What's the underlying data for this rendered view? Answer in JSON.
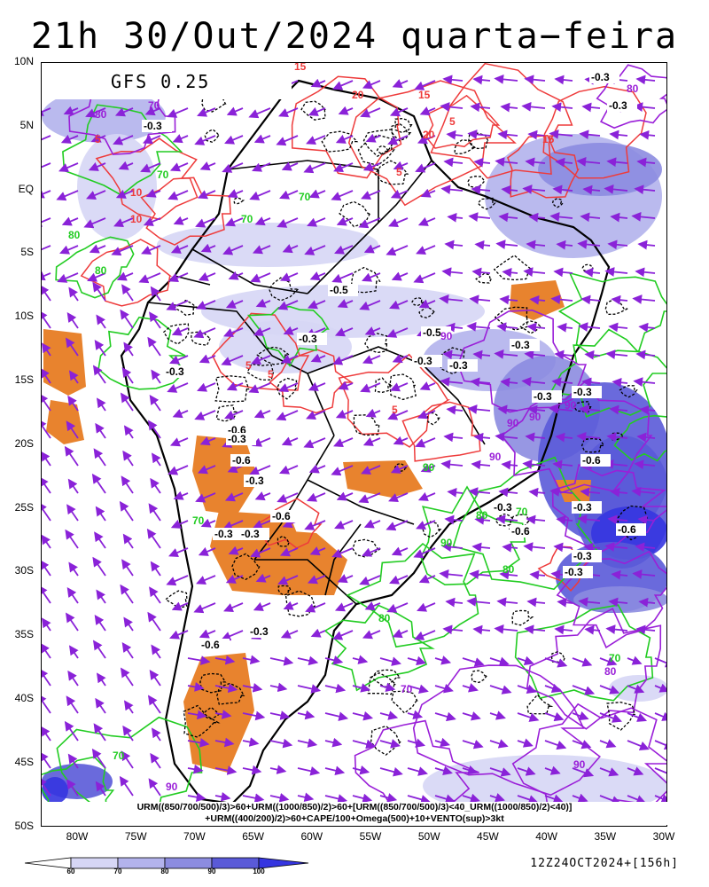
{
  "title": "21h 30/Out/2024 quarta−feira",
  "model": "GFS 0.25",
  "lat_labels": [
    "10N",
    "5N",
    "EQ",
    "5S",
    "10S",
    "15S",
    "20S",
    "25S",
    "30S",
    "35S",
    "40S",
    "45S",
    "50S"
  ],
  "lon_labels": [
    "80W",
    "75W",
    "70W",
    "65W",
    "60W",
    "55W",
    "50W",
    "45W",
    "40W",
    "35W",
    "30W"
  ],
  "legend_lines": [
    "URM((850/700/500)/3)>60+URM((1000/850)/2)>60+[URM((850/700/500)/3)<40_URM((1000/850)/2)<40)]",
    "+URM((400/200)/2)>60+CAPE/100+Omega(500)+10+VENTO(sup)>3kt"
  ],
  "run_info": "12Z24OCT2024+[156h]",
  "colorbar": {
    "labels": [
      "60",
      "70",
      "80",
      "90",
      "100"
    ],
    "colors": [
      "#ffffff",
      "#d6d6f5",
      "#b3b3ec",
      "#8c8ce0",
      "#5a5ad8",
      "#3535e0"
    ]
  },
  "field_colors": {
    "humidity_contour": "#9a1fd8",
    "green_contour": "#22cc22",
    "cape_contour": "#ee3b3b",
    "omega_contour": "#000000",
    "dry_shading": "#e8832e",
    "wind_vectors": "#8a22d8"
  },
  "contour_labels": {
    "omega": [
      "-0.3",
      "-0.3",
      "-0.3",
      "-0.5",
      "-0.3",
      "-0.5",
      "-0.3",
      "-0.3",
      "-0.3",
      "-0.3",
      "-0.6",
      "-0.3",
      "-0.6",
      "-0.3",
      "-0.3",
      "-0.3",
      "-0.6",
      "-0.3",
      "-0.3",
      "-0.3",
      "-0.3",
      "-0.6",
      "-0.6",
      "-0.3",
      "-0.6",
      "-0.3",
      "-0.3",
      "-0.6"
    ],
    "humidity": [
      "80",
      "70",
      "90",
      "90",
      "90",
      "90",
      "80",
      "90",
      "70",
      "90",
      "80",
      "90"
    ],
    "green": [
      "70",
      "70",
      "80",
      "70",
      "80",
      "70",
      "90",
      "80",
      "80",
      "90",
      "70",
      "80",
      "70",
      "70"
    ],
    "cape": [
      "15",
      "20",
      "15",
      "5",
      "5",
      "10",
      "20",
      "15",
      "5",
      "10",
      "5",
      "5",
      "5"
    ]
  }
}
